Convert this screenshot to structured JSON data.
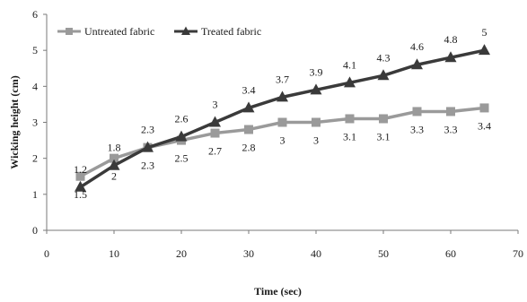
{
  "chart_data": {
    "type": "line",
    "title": "",
    "xlabel": "Time (sec)",
    "ylabel": "Wicking height (cm)",
    "xlim": [
      0,
      70
    ],
    "ylim": [
      0,
      6
    ],
    "xticks": [
      0,
      10,
      20,
      30,
      40,
      50,
      60,
      70
    ],
    "yticks": [
      0,
      1,
      2,
      3,
      4,
      5,
      6
    ],
    "grid": false,
    "legend_position": "top-left",
    "x": [
      5,
      10,
      15,
      20,
      25,
      30,
      35,
      40,
      45,
      50,
      55,
      60,
      65
    ],
    "series": [
      {
        "name": "Untreated fabric",
        "marker": "square",
        "color": "#9a9a9a",
        "values": [
          1.5,
          2.0,
          2.3,
          2.5,
          2.7,
          2.8,
          3.0,
          3.0,
          3.1,
          3.1,
          3.3,
          3.3,
          3.4
        ],
        "labels": [
          "1.5",
          "2",
          "2.3",
          "2.5",
          "2.7",
          "2.8",
          "3",
          "3",
          "3.1",
          "3.1",
          "3.3",
          "3.3",
          "3.4"
        ]
      },
      {
        "name": "Treated fabric",
        "marker": "triangle",
        "color": "#3a3a3a",
        "values": [
          1.2,
          1.8,
          2.3,
          2.6,
          3.0,
          3.4,
          3.7,
          3.9,
          4.1,
          4.3,
          4.6,
          4.8,
          5.0
        ],
        "labels": [
          "1.2",
          "1.8",
          "2.3",
          "2.6",
          "3",
          "3.4",
          "3.7",
          "3.9",
          "4.1",
          "4.3",
          "4.6",
          "4.8",
          "5"
        ]
      }
    ]
  }
}
